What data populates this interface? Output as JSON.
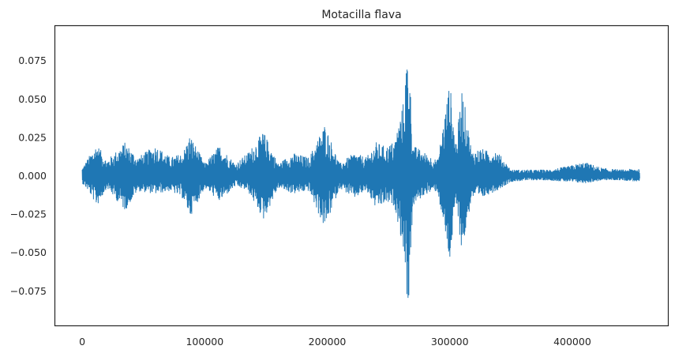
{
  "chart_data": {
    "type": "line",
    "title": "Motacilla flava",
    "xlabel": "",
    "ylabel": "",
    "xlim": [
      -22000,
      478000
    ],
    "ylim": [
      -0.0975,
      0.0975
    ],
    "grid": false,
    "legend": "none",
    "color": "#1f77b4",
    "n_samples": 455000,
    "x_ticks": [
      {
        "value": 0,
        "label": "0"
      },
      {
        "value": 100000,
        "label": "100000"
      },
      {
        "value": 200000,
        "label": "200000"
      },
      {
        "value": 300000,
        "label": "300000"
      },
      {
        "value": 400000,
        "label": "400000"
      }
    ],
    "y_ticks": [
      {
        "value": 0.075,
        "label": "0.075"
      },
      {
        "value": 0.05,
        "label": "0.050"
      },
      {
        "value": 0.025,
        "label": "0.025"
      },
      {
        "value": 0.0,
        "label": "0.000"
      },
      {
        "value": -0.025,
        "label": "−0.025"
      },
      {
        "value": -0.05,
        "label": "−0.050"
      },
      {
        "value": -0.075,
        "label": "−0.075"
      }
    ],
    "series": [
      {
        "color": "#1f77b4",
        "envelope_x": [
          0,
          5000,
          12000,
          20000,
          35000,
          45000,
          60000,
          72000,
          82000,
          88000,
          100000,
          112000,
          125000,
          135000,
          148000,
          160000,
          172000,
          185000,
          198000,
          210000,
          222000,
          232000,
          240000,
          248000,
          255000,
          262000,
          266000,
          270000,
          280000,
          290000,
          300000,
          305000,
          310000,
          318000,
          325000,
          332000,
          338000,
          350000,
          365000,
          380000,
          395000,
          410000,
          425000,
          440000,
          455000
        ],
        "envelope_max": [
          0.005,
          0.012,
          0.021,
          0.01,
          0.022,
          0.012,
          0.02,
          0.012,
          0.015,
          0.027,
          0.008,
          0.02,
          0.008,
          0.015,
          0.029,
          0.008,
          0.015,
          0.012,
          0.034,
          0.008,
          0.015,
          0.012,
          0.022,
          0.019,
          0.023,
          0.048,
          0.089,
          0.02,
          0.015,
          0.01,
          0.062,
          0.02,
          0.058,
          0.016,
          0.018,
          0.016,
          0.017,
          0.004,
          0.004,
          0.004,
          0.006,
          0.009,
          0.005,
          0.004,
          0.005
        ],
        "envelope_min": [
          -0.005,
          -0.01,
          -0.02,
          -0.008,
          -0.023,
          -0.01,
          -0.012,
          -0.01,
          -0.015,
          -0.027,
          -0.008,
          -0.017,
          -0.007,
          -0.01,
          -0.029,
          -0.008,
          -0.012,
          -0.01,
          -0.035,
          -0.008,
          -0.015,
          -0.01,
          -0.022,
          -0.018,
          -0.02,
          -0.048,
          -0.09,
          -0.02,
          -0.012,
          -0.01,
          -0.058,
          -0.018,
          -0.051,
          -0.014,
          -0.016,
          -0.012,
          -0.01,
          -0.004,
          -0.003,
          -0.003,
          -0.004,
          -0.005,
          -0.003,
          -0.003,
          -0.004
        ]
      }
    ]
  }
}
